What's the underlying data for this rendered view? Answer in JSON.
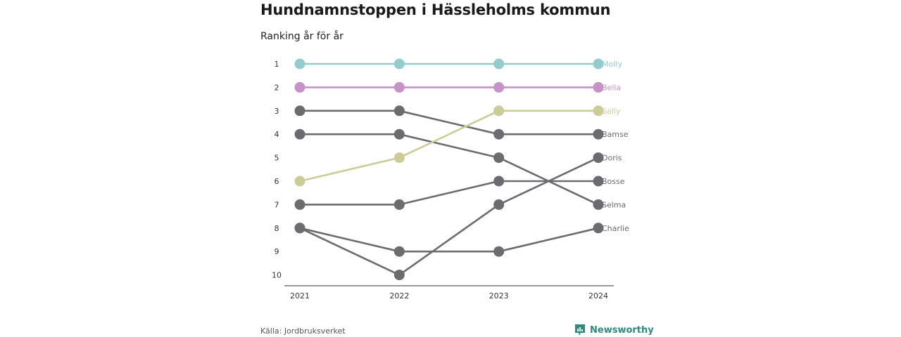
{
  "title": "Hundnamnstoppen i Hässleholms kommun",
  "subtitle": "Ranking år för år",
  "source": "Källa: Jordbruksverket",
  "brand": {
    "name": "Newsworthy",
    "icon": "newsworthy-logo-icon",
    "color": "#2c8a80"
  },
  "chart_data": {
    "type": "line",
    "x": [
      "2021",
      "2022",
      "2023",
      "2024"
    ],
    "y_ticks": [
      1,
      2,
      3,
      4,
      5,
      6,
      7,
      8,
      9,
      10
    ],
    "ylim": [
      1,
      10
    ],
    "y_reversed": true,
    "grid": false,
    "legend": "direct labels at line ends",
    "series": [
      {
        "name": "Molly",
        "values": [
          1,
          1,
          1,
          1
        ],
        "color": "#94cbcd"
      },
      {
        "name": "Bella",
        "values": [
          2,
          2,
          2,
          2
        ],
        "color": "#c693c9"
      },
      {
        "name": "Sally",
        "values": [
          6,
          5,
          3,
          3
        ],
        "color": "#cccc99"
      },
      {
        "name": "Bamse",
        "values": [
          3,
          3,
          4,
          4
        ],
        "color": "#6b6b70"
      },
      {
        "name": "Doris",
        "values": [
          8,
          10,
          7,
          5
        ],
        "color": "#6b6b70"
      },
      {
        "name": "Bosse",
        "values": [
          7,
          7,
          6,
          6
        ],
        "color": "#6b6b70"
      },
      {
        "name": "Selma",
        "values": [
          4,
          4,
          5,
          7
        ],
        "color": "#6b6b70"
      },
      {
        "name": "Charlie",
        "values": [
          8,
          9,
          9,
          8
        ],
        "color": "#6b6b70"
      }
    ]
  }
}
